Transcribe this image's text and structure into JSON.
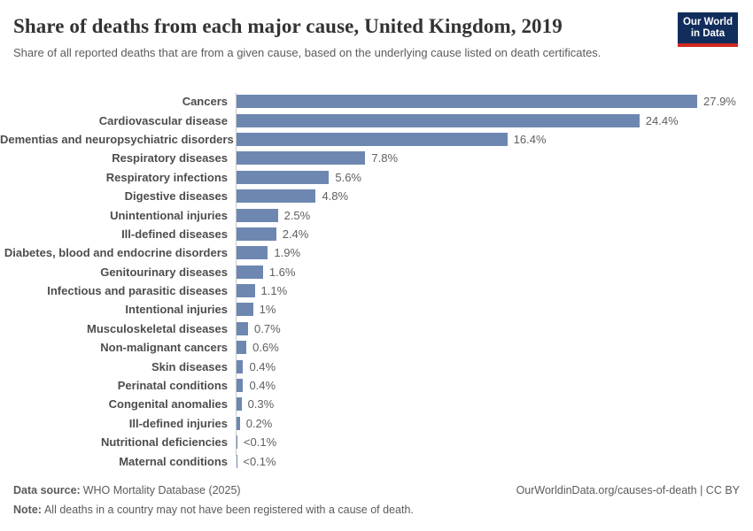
{
  "header": {
    "title": "Share of deaths from each major cause, United Kingdom, 2019",
    "subtitle": "Share of all reported deaths that are from a given cause, based on the underlying cause listed on death certificates.",
    "logo": {
      "line1": "Our World",
      "line2": "in Data"
    }
  },
  "chart_data": {
    "type": "bar",
    "orientation": "horizontal",
    "title": "Share of deaths from each major cause, United Kingdom, 2019",
    "xlabel": "",
    "ylabel": "",
    "unit": "%",
    "grid": false,
    "xlim": [
      0,
      28
    ],
    "categories": [
      "Cancers",
      "Cardiovascular disease",
      "Dementias and neuropsychiatric disorders",
      "Respiratory diseases",
      "Respiratory infections",
      "Digestive diseases",
      "Unintentional injuries",
      "Ill-defined diseases",
      "Diabetes, blood and endocrine disorders",
      "Genitourinary diseases",
      "Infectious and parasitic diseases",
      "Intentional injuries",
      "Musculoskeletal diseases",
      "Non-malignant cancers",
      "Skin diseases",
      "Perinatal conditions",
      "Congenital anomalies",
      "Ill-defined injuries",
      "Nutritional deficiencies",
      "Maternal conditions"
    ],
    "values": [
      27.9,
      24.4,
      16.4,
      7.8,
      5.6,
      4.8,
      2.5,
      2.4,
      1.9,
      1.6,
      1.1,
      1.0,
      0.7,
      0.6,
      0.4,
      0.4,
      0.3,
      0.2,
      0.05,
      0.02
    ],
    "value_labels": [
      "27.9%",
      "24.4%",
      "16.4%",
      "7.8%",
      "5.6%",
      "4.8%",
      "2.5%",
      "2.4%",
      "1.9%",
      "1.6%",
      "1.1%",
      "1%",
      "0.7%",
      "0.6%",
      "0.4%",
      "0.4%",
      "0.3%",
      "0.2%",
      "<0.1%",
      "<0.1%"
    ]
  },
  "footer": {
    "source_label": "Data source:",
    "source_text": "WHO Mortality Database (2025)",
    "note_label": "Note:",
    "note_text": "All deaths in a country may not have been registered with a cause of death.",
    "credit": "OurWorldinData.org/causes-of-death | CC BY"
  },
  "colors": {
    "bar": "#6e87b1",
    "axis": "#c9c9c9",
    "logo_bg": "#102d5c",
    "logo_accent": "#d0291f"
  }
}
